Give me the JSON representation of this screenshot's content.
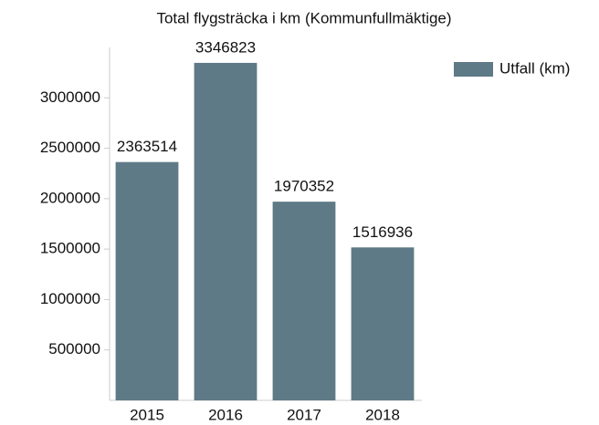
{
  "chart_data": {
    "type": "bar",
    "title": "Total flygsträcka i km (Kommunfullmäktige)",
    "categories": [
      "2015",
      "2016",
      "2017",
      "2018"
    ],
    "series": [
      {
        "name": "Utfall (km)",
        "color": "#5f7a87",
        "values": [
          2363514,
          3346823,
          1970352,
          1516936
        ]
      }
    ],
    "ylim": [
      0,
      3500000
    ],
    "yticks": [
      500000,
      1000000,
      1500000,
      2000000,
      2500000,
      3000000
    ],
    "grid": false,
    "legend": "top-right"
  }
}
